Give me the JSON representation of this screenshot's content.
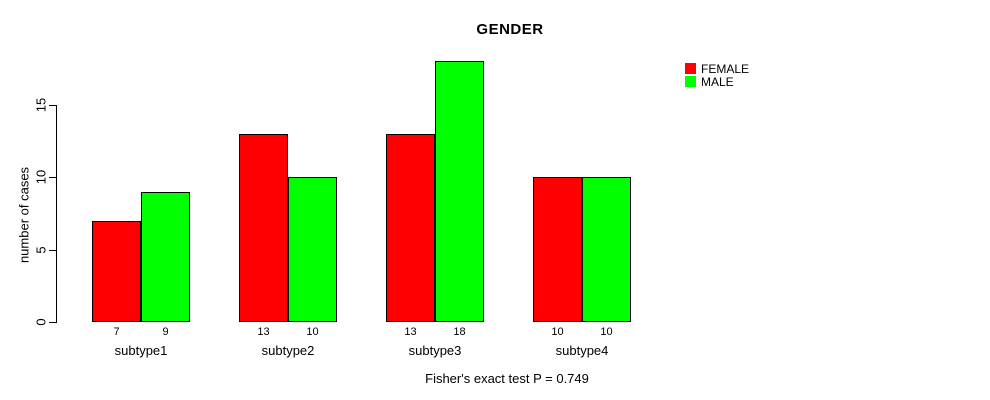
{
  "chart_data": {
    "type": "bar",
    "title": "GENDER",
    "categories": [
      "subtype1",
      "subtype2",
      "subtype3",
      "subtype4"
    ],
    "series": [
      {
        "name": "FEMALE",
        "color": "#ff0000",
        "values": [
          7,
          13,
          13,
          10
        ]
      },
      {
        "name": "MALE",
        "color": "#00ff00",
        "values": [
          9,
          10,
          18,
          10
        ]
      }
    ],
    "xlabel": "",
    "ylabel": "number of cases",
    "yticks": [
      0,
      5,
      10,
      15
    ],
    "ylim": [
      0,
      18
    ],
    "grid": false,
    "legend_position": "top-right",
    "bar_value_labels": true,
    "annotation": "Fisher's exact test P = 0.749",
    "colors": {
      "female": "#ff0000",
      "male": "#00ff00",
      "axis": "#000000",
      "background": "#ffffff"
    }
  }
}
